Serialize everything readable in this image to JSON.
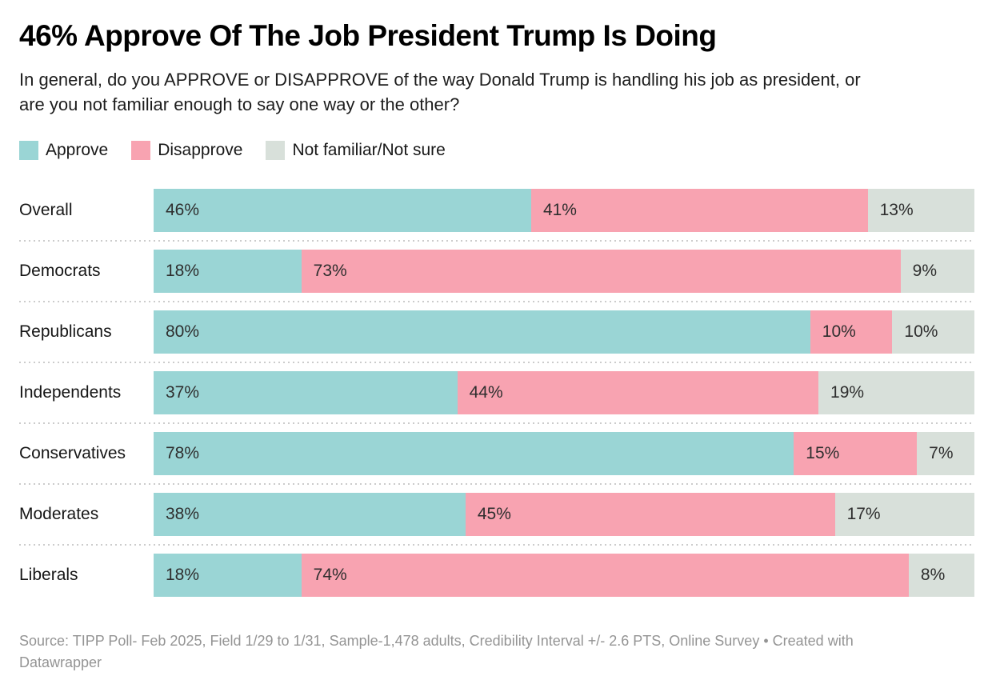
{
  "header": {
    "title": "46% Approve Of The Job President Trump Is Doing",
    "subtitle": "In general, do you APPROVE or DISAPPROVE of the way Donald Trump is handling his job as president, or are you not familiar enough to say one way or the other?"
  },
  "chart_data": {
    "type": "bar",
    "variant": "stacked-horizontal",
    "stacked": true,
    "grid": false,
    "legend_position": "top",
    "xlim": [
      0,
      100
    ],
    "value_suffix": "%",
    "categories": [
      "Overall",
      "Democrats",
      "Republicans",
      "Independents",
      "Conservatives",
      "Moderates",
      "Liberals"
    ],
    "series": [
      {
        "name": "Approve",
        "color": "#9ad5d5",
        "values": [
          46,
          18,
          80,
          37,
          78,
          38,
          18
        ]
      },
      {
        "name": "Disapprove",
        "color": "#f8a3b1",
        "values": [
          41,
          73,
          10,
          44,
          15,
          45,
          74
        ]
      },
      {
        "name": "Not familiar/Not sure",
        "color": "#d8e0da",
        "values": [
          13,
          9,
          10,
          19,
          7,
          17,
          8
        ]
      }
    ],
    "title": "46% Approve Of The Job President Trump Is Doing",
    "xlabel": "",
    "ylabel": ""
  },
  "footer": {
    "source": "Source: TIPP Poll- Feb 2025, Field 1/29 to 1/31, Sample-1,478 adults, Credibility Interval +/- 2.6 PTS, Online Survey",
    "separator": "•",
    "attribution": "Created with Datawrapper"
  }
}
